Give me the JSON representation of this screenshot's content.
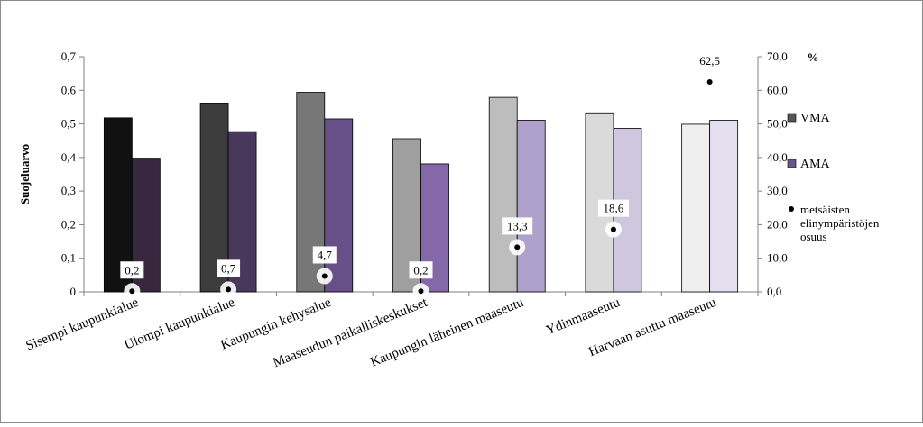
{
  "chart_data": {
    "type": "bar",
    "categories": [
      "Sisempi kaupunkialue",
      "Ulompi kaupunkialue",
      "Kaupungin kehysalue",
      "Maaseudun paikalliskeskukset",
      "Kaupungin läheinen maaseutu",
      "Ydinmaaseutu",
      "Harvaan asuttu maaseutu"
    ],
    "series": [
      {
        "name": "VMA",
        "values": [
          0.518,
          0.562,
          0.594,
          0.456,
          0.579,
          0.533,
          0.499
        ],
        "axis": "left"
      },
      {
        "name": "AMA",
        "values": [
          0.398,
          0.477,
          0.515,
          0.381,
          0.511,
          0.487,
          0.511
        ],
        "axis": "left"
      },
      {
        "name": "metsäisten elinympäristöjen osuus",
        "type": "scatter",
        "values": [
          0.2,
          0.7,
          4.7,
          0.2,
          13.3,
          18.6,
          62.5
        ],
        "labels": [
          "0,2",
          "0,7",
          "4,7",
          "0,2",
          "13,3",
          "18,6",
          "62,5"
        ],
        "axis": "right"
      }
    ],
    "ylabel": "Suojeluarvo",
    "ylim": [
      0,
      0.7
    ],
    "y_ticks": [
      "0",
      "0,1",
      "0,2",
      "0,3",
      "0,4",
      "0,5",
      "0,6",
      "0,7"
    ],
    "y2label": "%",
    "y2lim": [
      0,
      70
    ],
    "y2_ticks": [
      "0,0",
      "10,0",
      "20,0",
      "30,0",
      "40,0",
      "50,0",
      "60,0",
      "70,0"
    ],
    "grid": false,
    "legend_position": "right",
    "legend": [
      {
        "name": "VMA",
        "marker": "bar",
        "color": "#555555"
      },
      {
        "name": "AMA",
        "marker": "bar",
        "color": "#6a548c"
      },
      {
        "name": "metsäisten elinympäristöjen osuus",
        "lines": [
          "metsäisten",
          "elinympäristöjen",
          "osuus"
        ],
        "marker": "dot",
        "color": "#000000"
      }
    ],
    "colors": {
      "VMA": [
        "#111111",
        "#3c3c3c",
        "#777777",
        "#9f9f9f",
        "#bdbdbd",
        "#dadada",
        "#efefef"
      ],
      "AMA": [
        "#372840",
        "#47385c",
        "#675088",
        "#8568a8",
        "#b0a0cc",
        "#cfc6e0",
        "#e5e0ef"
      ]
    }
  }
}
